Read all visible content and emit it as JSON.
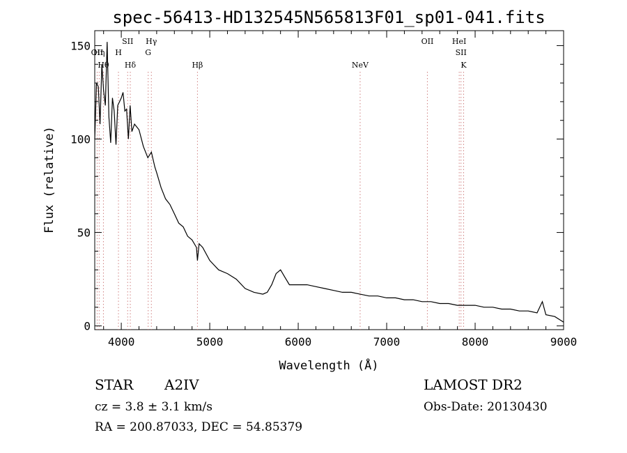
{
  "chart_data": {
    "type": "line",
    "title": "spec-56413-HD132545N565813F01_sp01-041.fits",
    "xlabel": "Wavelength (Å)",
    "ylabel": "Flux (relative)",
    "xlim": [
      3700,
      9000
    ],
    "ylim": [
      -2,
      158
    ],
    "xticks": [
      4000,
      5000,
      6000,
      7000,
      8000,
      9000
    ],
    "yticks": [
      0,
      50,
      100,
      150
    ],
    "grid": false,
    "series": [
      {
        "x": [
          3700,
          3720,
          3740,
          3760,
          3780,
          3800,
          3820,
          3840,
          3860,
          3880,
          3900,
          3920,
          3940,
          3960,
          3980,
          4000,
          4020,
          4040,
          4060,
          4080,
          4100,
          4120,
          4150,
          4200,
          4250,
          4300,
          4340,
          4380,
          4400,
          4450,
          4500,
          4550,
          4600,
          4650,
          4700,
          4750,
          4800,
          4850,
          4861,
          4880,
          4920,
          5000,
          5100,
          5200,
          5300,
          5400,
          5500,
          5600,
          5650,
          5700,
          5750,
          5800,
          5850,
          5900,
          6000,
          6100,
          6200,
          6300,
          6400,
          6500,
          6600,
          6700,
          6800,
          6900,
          7000,
          7100,
          7200,
          7300,
          7400,
          7500,
          7600,
          7700,
          7800,
          7900,
          8000,
          8100,
          8200,
          8300,
          8400,
          8500,
          8600,
          8700,
          8760,
          8800,
          8900,
          9000
        ],
        "y": [
          100,
          130,
          128,
          108,
          140,
          126,
          118,
          152,
          112,
          98,
          122,
          115,
          97,
          118,
          120,
          122,
          125,
          115,
          116,
          100,
          118,
          104,
          108,
          105,
          96,
          90,
          93,
          85,
          82,
          74,
          68,
          65,
          60,
          55,
          53,
          48,
          46,
          42,
          35,
          44,
          42,
          35,
          30,
          28,
          25,
          20,
          18,
          17,
          18,
          22,
          28,
          30,
          26,
          22,
          22,
          22,
          21,
          20,
          19,
          18,
          18,
          17,
          16,
          16,
          15,
          15,
          14,
          14,
          13,
          13,
          12,
          12,
          11,
          11,
          11,
          10,
          10,
          9,
          9,
          8,
          8,
          7,
          13,
          6,
          5,
          2
        ],
        "color": "#000000"
      }
    ],
    "line_markers": [
      {
        "label": "OII",
        "x": 3727,
        "row": 1
      },
      {
        "label": "Hη",
        "x": 3750,
        "row": 1
      },
      {
        "label": "Hθ",
        "x": 3798,
        "row": 2
      },
      {
        "label": "H",
        "x": 3968,
        "row": 1
      },
      {
        "label": "SII",
        "x": 4072,
        "row": 0
      },
      {
        "label": "Hδ",
        "x": 4102,
        "row": 2
      },
      {
        "label": "Hγ",
        "x": 4340,
        "row": 0
      },
      {
        "label": "G",
        "x": 4304,
        "row": 1
      },
      {
        "label": "Hβ",
        "x": 4861,
        "row": 2
      },
      {
        "label": "NeV",
        "x": 6700,
        "row": 2
      },
      {
        "label": "OII",
        "x": 7460,
        "row": 0
      },
      {
        "label": "HeI",
        "x": 7820,
        "row": 0
      },
      {
        "label": "SII",
        "x": 7840,
        "row": 1
      },
      {
        "label": "K",
        "x": 7870,
        "row": 2
      }
    ]
  },
  "info": {
    "object_class": "STAR",
    "subclass": "A2IV",
    "redshift": "cz = 3.8 ± 3.1 km/s",
    "coords": "RA = 200.87033, DEC =  54.85379",
    "survey": "LAMOST DR2",
    "obs_date": "Obs-Date: 20130430"
  }
}
